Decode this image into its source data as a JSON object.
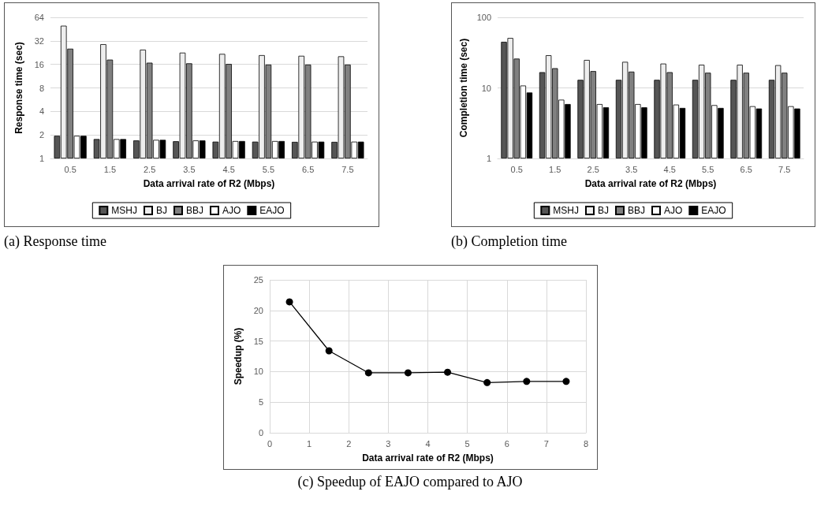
{
  "chart_data": [
    {
      "type": "bar",
      "title": "(a) Response time",
      "xlabel": "Data arrival rate of R2 (Mbps)",
      "ylabel": "Response time (sec)",
      "categories": [
        "0.5",
        "1.5",
        "2.5",
        "3.5",
        "4.5",
        "5.5",
        "6.5",
        "7.5"
      ],
      "log": "y",
      "ylim": [
        1,
        64
      ],
      "yticks": [
        1,
        2,
        4,
        8,
        16,
        32,
        64
      ],
      "grid": "y",
      "legend": "bottom",
      "series": [
        {
          "name": "MSHJ",
          "color": "#555555",
          "values": [
            1.95,
            1.77,
            1.7,
            1.66,
            1.64,
            1.64,
            1.63,
            1.63
          ]
        },
        {
          "name": "BJ",
          "color": "#eeeeee",
          "values": [
            50,
            29,
            24.7,
            22.6,
            21.8,
            21,
            20.6,
            20.3
          ]
        },
        {
          "name": "BBJ",
          "color": "#808080",
          "values": [
            25.4,
            18.4,
            16.8,
            16.5,
            16.2,
            15.9,
            15.9,
            15.9
          ]
        },
        {
          "name": "AJO",
          "color": "#ffffff",
          "values": [
            1.95,
            1.77,
            1.73,
            1.7,
            1.67,
            1.67,
            1.64,
            1.64
          ]
        },
        {
          "name": "EAJO",
          "color": "#000000",
          "values": [
            1.95,
            1.77,
            1.73,
            1.7,
            1.67,
            1.67,
            1.64,
            1.64
          ]
        }
      ]
    },
    {
      "type": "bar",
      "title": "(b) Completion time",
      "xlabel": "Data arrival rate of R2 (Mbps)",
      "ylabel": "Completion time (sec)",
      "categories": [
        "0.5",
        "1.5",
        "2.5",
        "3.5",
        "4.5",
        "5.5",
        "6.5",
        "7.5"
      ],
      "log": "y",
      "ylim": [
        1,
        100
      ],
      "yticks": [
        1,
        10,
        100
      ],
      "grid": "y",
      "legend": "bottom",
      "series": [
        {
          "name": "MSHJ",
          "color": "#555555",
          "values": [
            45,
            16.7,
            13,
            13,
            13,
            13,
            13,
            13
          ]
        },
        {
          "name": "BJ",
          "color": "#eeeeee",
          "values": [
            51,
            29,
            24.9,
            23.4,
            22.1,
            21.3,
            21.3,
            21
          ]
        },
        {
          "name": "BBJ",
          "color": "#808080",
          "values": [
            26,
            19,
            17.3,
            17,
            16.7,
            16.4,
            16.4,
            16.4
          ]
        },
        {
          "name": "AJO",
          "color": "#ffffff",
          "values": [
            10.8,
            6.8,
            5.9,
            5.9,
            5.8,
            5.7,
            5.5,
            5.5
          ]
        },
        {
          "name": "EAJO",
          "color": "#000000",
          "values": [
            8.6,
            5.9,
            5.3,
            5.3,
            5.2,
            5.2,
            5.1,
            5.1
          ]
        }
      ]
    },
    {
      "type": "line",
      "title": "(c) Speedup of EAJO compared to AJO",
      "xlabel": "Data arrival rate of R2 (Mbps)",
      "ylabel": "Speedup (%)",
      "x": [
        0.5,
        1.5,
        2.5,
        3.5,
        4.5,
        5.5,
        6.5,
        7.5
      ],
      "xlim": [
        0,
        8
      ],
      "xticks": [
        0,
        1,
        2,
        3,
        4,
        5,
        6,
        7,
        8
      ],
      "ylim": [
        0,
        25
      ],
      "yticks": [
        0,
        5,
        10,
        15,
        20,
        25
      ],
      "grid": true,
      "marker": "circle",
      "line_style": "solid",
      "series": [
        {
          "color": "#000000",
          "values": [
            21.4,
            13.4,
            9.8,
            9.8,
            9.9,
            8.2,
            8.4,
            8.4
          ]
        }
      ]
    }
  ]
}
